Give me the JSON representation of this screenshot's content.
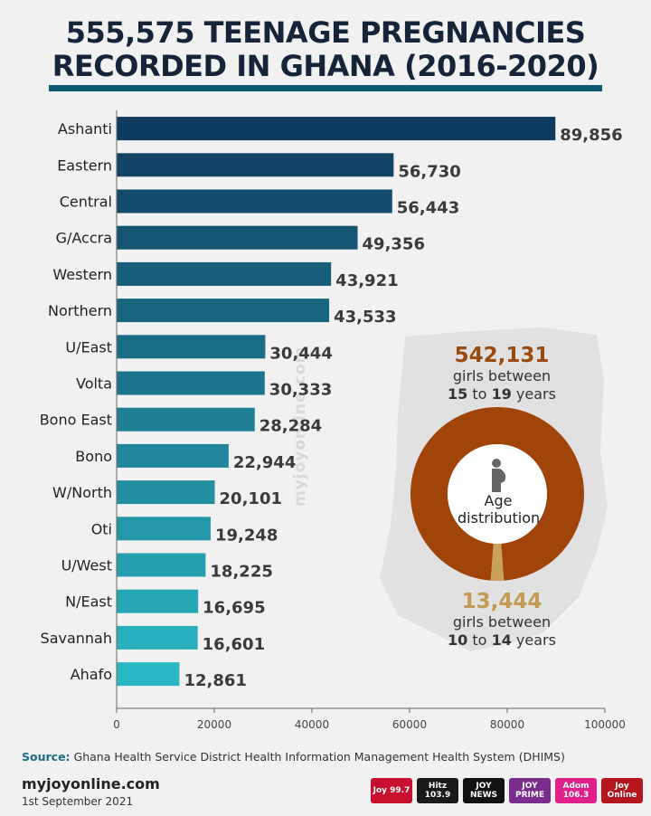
{
  "header": {
    "title_line1": "555,575 TEENAGE PREGNANCIES",
    "title_line2": "RECORDED IN GHANA (2016-2020)"
  },
  "chart_data": {
    "type": "bar",
    "orientation": "horizontal",
    "categories": [
      "Ashanti",
      "Eastern",
      "Central",
      "G/Accra",
      "Western",
      "Northern",
      "U/East",
      "Volta",
      "Bono East",
      "Bono",
      "W/North",
      "Oti",
      "U/West",
      "N/East",
      "Savannah",
      "Ahafo"
    ],
    "values": [
      89856,
      56730,
      56443,
      49356,
      43921,
      43533,
      30444,
      30333,
      28284,
      22944,
      20101,
      19248,
      18225,
      16695,
      16601,
      12861
    ],
    "value_labels": [
      "89,856",
      "56,730",
      "56,443",
      "49,356",
      "43,921",
      "43,533",
      "30,444",
      "30,333",
      "28,284",
      "22,944",
      "20,101",
      "19,248",
      "18,225",
      "16,695",
      "16,601",
      "12,861"
    ],
    "xlim": [
      0,
      100000
    ],
    "x_ticks": [
      0,
      20000,
      40000,
      60000,
      80000,
      100000
    ],
    "x_tick_labels": [
      "0",
      "20000",
      "40000",
      "60000",
      "80000",
      "100000"
    ],
    "bar_color_start": "#0f3c5e",
    "bar_color_end": "#2ab7c4",
    "grid": false
  },
  "age_distribution": {
    "center_label_line1": "Age",
    "center_label_line2": "distribution",
    "older_count": "542,131",
    "older_line1": "girls between",
    "older_line2_a": "15",
    "older_line2_b": "to",
    "older_line2_c": "19",
    "older_line2_d": "years",
    "younger_count": "13,444",
    "younger_line1": "girls between",
    "younger_line2_a": "10",
    "younger_line2_b": "to",
    "younger_line2_c": "14",
    "younger_line2_d": "years",
    "older_value": 542131,
    "younger_value": 13444,
    "older_color": "#a0440a",
    "younger_color": "#c9a15a",
    "icon": "pregnant-woman-icon"
  },
  "watermark": "myjoyonline.com",
  "footer": {
    "source_label": "Source:",
    "source_text": "Ghana Health Service District Health Information Management Health System (DHIMS)",
    "site": "myjoyonline.com",
    "date": "1st September 2021",
    "logos": [
      "Joy 99.7",
      "Hitz 103.9",
      "JOY NEWS",
      "JOY PRIME",
      "Adom 106.3",
      "Joy Online"
    ]
  }
}
